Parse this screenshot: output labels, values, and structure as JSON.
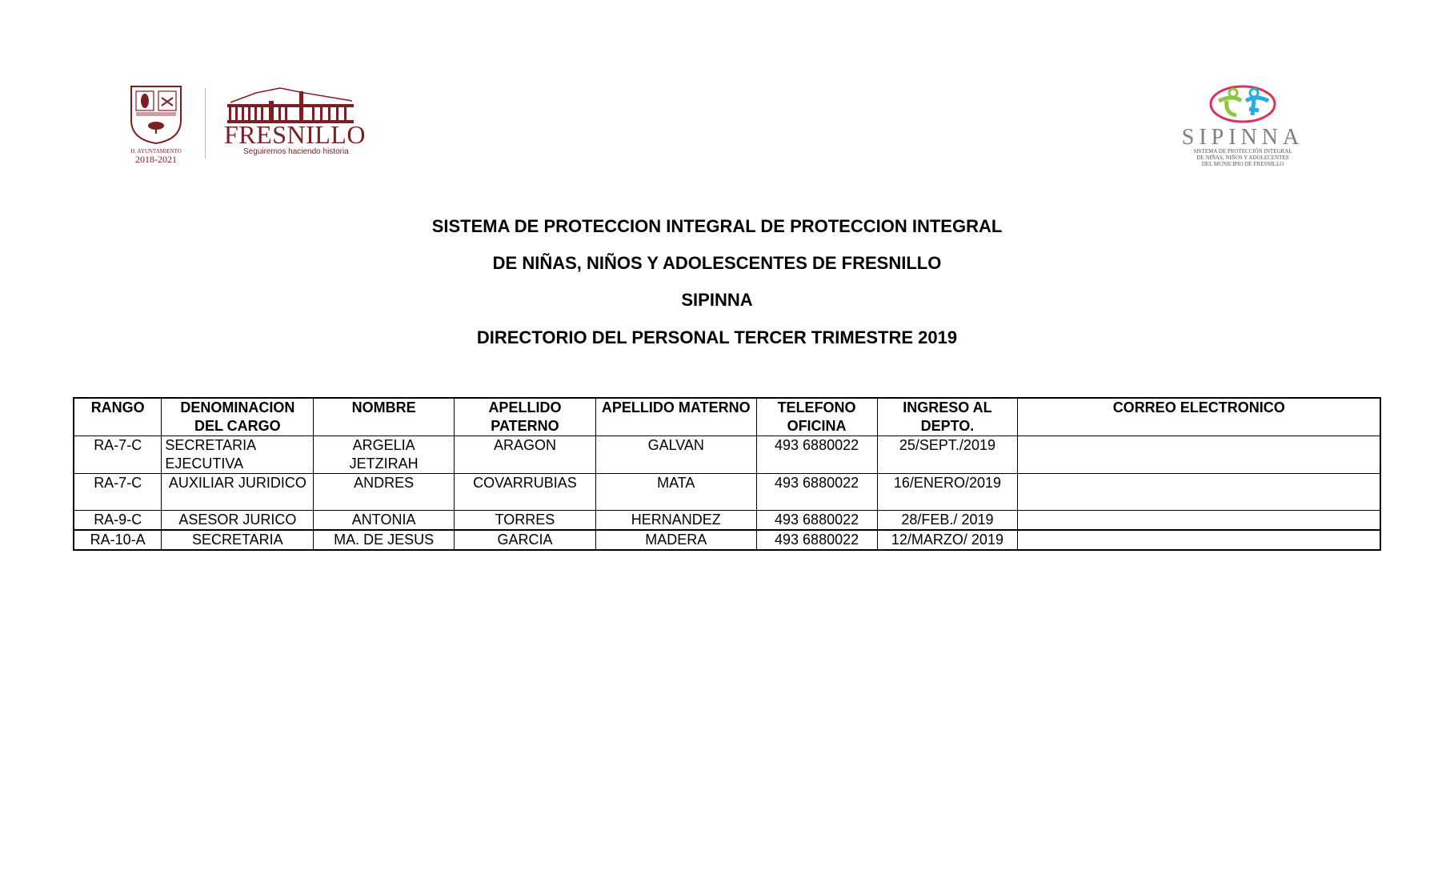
{
  "logos": {
    "ayuntamiento": {
      "line1": "H. AYUNTAMIENTO",
      "line2": "2018-2021"
    },
    "fresnillo": {
      "name": "FRESNILLO",
      "slogan": "Seguiremos haciendo historia"
    },
    "sipinna": {
      "name": "SIPINNA",
      "line1": "SISTEMA DE PROTECCIÓN INTEGRAL",
      "line2": "DE NIÑAS, NIÑOS Y ADOLECENTES",
      "line3": "DEL MUNICIPIO DE FRESNILLO"
    },
    "colors": {
      "maroon": "#7a1f24",
      "green": "#8dc63f",
      "blue": "#29abe2",
      "pink": "#d9345a",
      "gray": "#7f7f7f"
    }
  },
  "titles": [
    "SISTEMA DE PROTECCION INTEGRAL DE PROTECCION INTEGRAL",
    "DE NIÑAS, NIÑOS Y ADOLESCENTES DE FRESNILLO",
    "SIPINNA",
    "DIRECTORIO DEL PERSONAL TERCER TRIMESTRE 2019"
  ],
  "table": {
    "headers": [
      "RANGO",
      "DENOMINACION DEL CARGO",
      "NOMBRE",
      "APELLIDO PATERNO",
      "APELLIDO MATERNO",
      "TELEFONO OFICINA",
      "INGRESO AL DEPTO.",
      "CORREO ELECTRONICO"
    ],
    "rows": [
      [
        "RA-7-C",
        "SECRETARIA EJECUTIVA",
        "ARGELIA JETZIRAH",
        "ARAGON",
        "GALVAN",
        "493 6880022",
        "25/SEPT./2019",
        ""
      ],
      [
        "RA-7-C",
        "AUXILIAR JURIDICO",
        "ANDRES",
        "COVARRUBIAS",
        "MATA",
        "493 6880022",
        "16/ENERO/2019",
        ""
      ],
      [
        "RA-9-C",
        "ASESOR JURICO",
        "ANTONIA",
        "TORRES",
        "HERNANDEZ",
        "493 6880022",
        "28/FEB./ 2019",
        ""
      ],
      [
        "RA-10-A",
        "SECRETARIA",
        "MA. DE JESUS",
        "GARCIA",
        "MADERA",
        "493 6880022",
        "12/MARZO/ 2019",
        ""
      ]
    ]
  }
}
